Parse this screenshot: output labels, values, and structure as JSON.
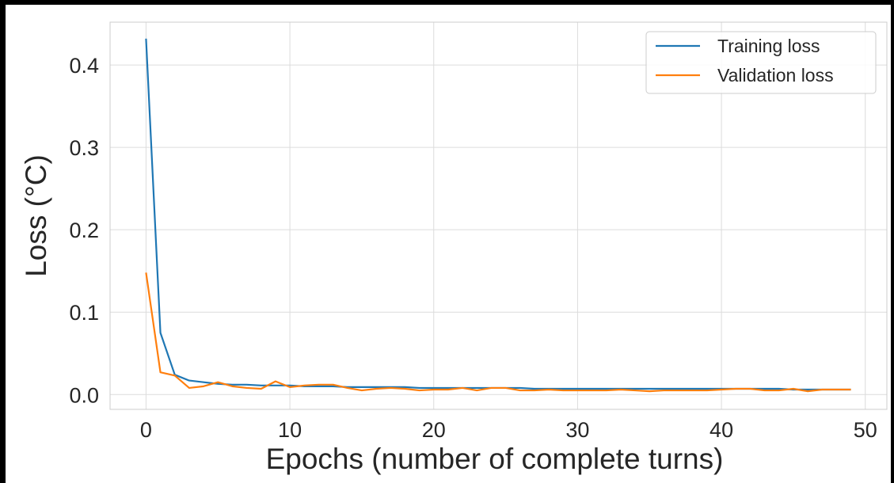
{
  "chart_data": {
    "type": "line",
    "title": "",
    "xlabel": "Epochs (number of complete turns)",
    "ylabel": "Loss (°C)",
    "xlim": [
      -2.5,
      51.5
    ],
    "ylim": [
      -0.018,
      0.452
    ],
    "xticks": [
      0,
      10,
      20,
      30,
      40,
      50
    ],
    "yticks": [
      0.0,
      0.1,
      0.2,
      0.3,
      0.4
    ],
    "xtick_labels": [
      "0",
      "10",
      "20",
      "30",
      "40",
      "50"
    ],
    "ytick_labels": [
      "0.0",
      "0.1",
      "0.2",
      "0.3",
      "0.4"
    ],
    "grid": true,
    "legend_position": "top-right",
    "x": [
      0,
      1,
      2,
      3,
      4,
      5,
      6,
      7,
      8,
      9,
      10,
      11,
      12,
      13,
      14,
      15,
      16,
      17,
      18,
      19,
      20,
      21,
      22,
      23,
      24,
      25,
      26,
      27,
      28,
      29,
      30,
      31,
      32,
      33,
      34,
      35,
      36,
      37,
      38,
      39,
      40,
      41,
      42,
      43,
      44,
      45,
      46,
      47,
      48,
      49
    ],
    "series": [
      {
        "name": "Training loss",
        "color": "#1f77b4",
        "values": [
          0.432,
          0.075,
          0.024,
          0.017,
          0.015,
          0.013,
          0.012,
          0.012,
          0.011,
          0.011,
          0.011,
          0.01,
          0.01,
          0.01,
          0.009,
          0.009,
          0.009,
          0.009,
          0.009,
          0.008,
          0.008,
          0.008,
          0.008,
          0.008,
          0.008,
          0.008,
          0.008,
          0.007,
          0.007,
          0.007,
          0.007,
          0.007,
          0.007,
          0.007,
          0.007,
          0.007,
          0.007,
          0.007,
          0.007,
          0.007,
          0.007,
          0.007,
          0.007,
          0.007,
          0.007,
          0.006,
          0.006,
          0.006,
          0.006,
          0.006
        ]
      },
      {
        "name": "Validation loss",
        "color": "#ff7f0e",
        "values": [
          0.148,
          0.027,
          0.023,
          0.008,
          0.01,
          0.015,
          0.01,
          0.008,
          0.007,
          0.016,
          0.009,
          0.011,
          0.012,
          0.012,
          0.008,
          0.005,
          0.007,
          0.008,
          0.007,
          0.005,
          0.006,
          0.006,
          0.008,
          0.005,
          0.008,
          0.008,
          0.005,
          0.005,
          0.006,
          0.005,
          0.005,
          0.005,
          0.005,
          0.006,
          0.005,
          0.004,
          0.005,
          0.005,
          0.005,
          0.005,
          0.006,
          0.007,
          0.007,
          0.005,
          0.005,
          0.007,
          0.004,
          0.006,
          0.006,
          0.006
        ]
      }
    ]
  }
}
